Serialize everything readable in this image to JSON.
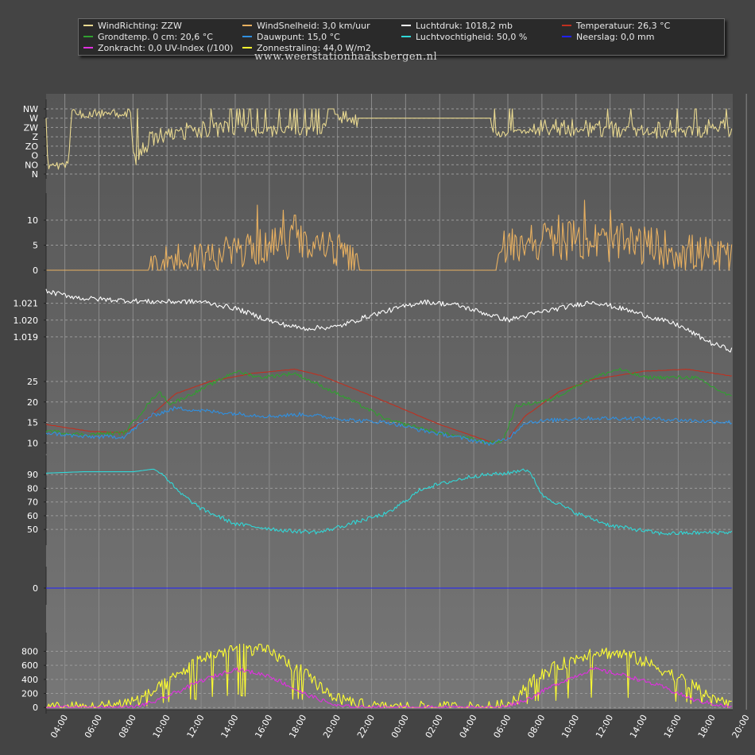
{
  "legend": [
    {
      "label": "WindRichting: ZZW",
      "color": "#e8d890"
    },
    {
      "label": "WindSnelheid: 3,0 km/uur",
      "color": "#e8b060"
    },
    {
      "label": "Luchtdruk: 1018,2 mb",
      "color": "#ffffff"
    },
    {
      "label": "Temperatuur: 26,3 °C",
      "color": "#c03020"
    },
    {
      "label": "Grondtemp. 0 cm: 20,6 °C",
      "color": "#30a030"
    },
    {
      "label": "Dauwpunt: 15,0 °C",
      "color": "#3090e0"
    },
    {
      "label": "Luchtvochtigheid: 50,0 %",
      "color": "#30d8d8"
    },
    {
      "label": "Neerslag: 0,0 mm",
      "color": "#2020ff"
    },
    {
      "label": "Zonkracht: 0,0 UV-Index (/100)",
      "color": "#e030e0"
    },
    {
      "label": "Zonnestraling: 44,0 W/m2",
      "color": "#ffff30"
    }
  ],
  "watermark": "www.weerstationhaaksbergen.nl",
  "chart_data": {
    "type": "line",
    "x_tick_labels": [
      "04:00",
      "06:00",
      "08:00",
      "10:00",
      "12:00",
      "14:00",
      "16:00",
      "18:00",
      "20:00",
      "22:00",
      "00:00",
      "02:00",
      "04:00",
      "06:00",
      "08:00",
      "10:00",
      "12:00",
      "14:00",
      "16:00",
      "18:00",
      "20:00"
    ],
    "x_range_hours": [
      2.9,
      43.2
    ],
    "panels": [
      {
        "id": "winddir",
        "series_name": "WindRichting",
        "color": "#e8d890",
        "tick_labels": [
          "NW",
          "W",
          "ZW",
          "Z",
          "ZO",
          "O",
          "NO",
          "N"
        ],
        "keyframes": [
          [
            2.9,
            1.0
          ],
          [
            3.0,
            6.0
          ],
          [
            4.2,
            6.0
          ],
          [
            4.4,
            0.5
          ],
          [
            5.0,
            0.5
          ],
          [
            7.9,
            0.5
          ],
          [
            8.0,
            5.5
          ],
          [
            8.4,
            5.2
          ],
          [
            9.0,
            3.0
          ],
          [
            13.0,
            2.0
          ],
          [
            17.0,
            2.5
          ],
          [
            19.0,
            2.2
          ],
          [
            20.0,
            0.6
          ],
          [
            21.0,
            1.5
          ],
          [
            21.2,
            1.0
          ],
          [
            29.0,
            1.0
          ],
          [
            29.1,
            2.8
          ],
          [
            33.0,
            2.0
          ],
          [
            38.0,
            2.2
          ],
          [
            43.2,
            2.0
          ]
        ],
        "noise": [
          [
            3.0,
            8.0,
            0.5,
            0.0
          ],
          [
            8.0,
            14.5,
            1.0,
            0.13
          ],
          [
            14.5,
            20.0,
            0.7,
            0.28
          ],
          [
            20.0,
            21.2,
            0.8,
            0.0
          ],
          [
            29.0,
            31.5,
            0.3,
            0.02
          ],
          [
            31.5,
            43.2,
            1.0,
            0.08
          ]
        ],
        "ylim": [
          0,
          7
        ]
      },
      {
        "id": "windspeed",
        "series_name": "WindSnelheid",
        "color": "#e8b060",
        "ticks": [
          0,
          5,
          10
        ],
        "keyframes": [
          [
            2.9,
            0
          ],
          [
            8.9,
            0
          ],
          [
            9.0,
            1.0
          ],
          [
            10.0,
            2.0
          ],
          [
            13.0,
            3.0
          ],
          [
            16.0,
            5.0
          ],
          [
            18.0,
            6.0
          ],
          [
            20.0,
            4.0
          ],
          [
            21.0,
            1.0
          ],
          [
            21.4,
            0
          ],
          [
            29.3,
            0
          ],
          [
            29.5,
            4.0
          ],
          [
            31.0,
            6.0
          ],
          [
            34.0,
            6.0
          ],
          [
            38.0,
            5.0
          ],
          [
            43.2,
            2.0
          ]
        ],
        "noise": [
          [
            9.0,
            21.3,
            3.5,
            0.08
          ],
          [
            29.5,
            43.2,
            4.0,
            0.18
          ]
        ],
        "spikes": [
          [
            15.3,
            13
          ],
          [
            16.8,
            12
          ],
          [
            17.5,
            11
          ],
          [
            34.5,
            14
          ],
          [
            36.0,
            12
          ],
          [
            33.0,
            11
          ]
        ],
        "ylim": [
          0,
          13.5
        ]
      },
      {
        "id": "pressure",
        "series_name": "Luchtdruk",
        "color": "#ffffff",
        "ticks": [
          1.019,
          1.02,
          1.021
        ],
        "tick_labels": [
          "1.019",
          "1.020",
          "1.021"
        ],
        "keyframes": [
          [
            2.9,
            1.0217
          ],
          [
            5.0,
            1.0213
          ],
          [
            9.0,
            1.0211
          ],
          [
            12.0,
            1.0211
          ],
          [
            14.0,
            1.0207
          ],
          [
            16.5,
            1.0198
          ],
          [
            18.0,
            1.0195
          ],
          [
            20.0,
            1.0196
          ],
          [
            22.0,
            1.0203
          ],
          [
            25.0,
            1.0211
          ],
          [
            27.0,
            1.0209
          ],
          [
            30.0,
            1.02
          ],
          [
            32.0,
            1.0205
          ],
          [
            35.0,
            1.0211
          ],
          [
            37.0,
            1.0206
          ],
          [
            40.0,
            1.0197
          ],
          [
            42.0,
            1.0186
          ],
          [
            43.2,
            1.0182
          ]
        ],
        "noise": [
          [
            2.9,
            43.2,
            0.00015,
            0.0
          ]
        ],
        "ylim": [
          1.018,
          1.0225
        ]
      },
      {
        "id": "temperature",
        "ticks": [
          10,
          15,
          20,
          25
        ],
        "ylim": [
          8.5,
          28.5
        ],
        "series": [
          {
            "name": "Temperatuur",
            "color": "#c03020",
            "keyframes": [
              [
                2.9,
                14.5
              ],
              [
                5.5,
                12.8
              ],
              [
                7.5,
                12.5
              ],
              [
                9.0,
                16.5
              ],
              [
                10.5,
                22.0
              ],
              [
                12.5,
                25.0
              ],
              [
                15.0,
                27.0
              ],
              [
                17.5,
                28.0
              ],
              [
                19.0,
                26.5
              ],
              [
                22.0,
                21.5
              ],
              [
                26.0,
                14.5
              ],
              [
                29.0,
                10.2
              ],
              [
                30.0,
                11.0
              ],
              [
                31.0,
                16.5
              ],
              [
                33.0,
                22.5
              ],
              [
                35.0,
                25.5
              ],
              [
                38.0,
                27.5
              ],
              [
                40.5,
                28.0
              ],
              [
                43.2,
                26.3
              ]
            ],
            "noise": 0.05
          },
          {
            "name": "Grondtemp. 0 cm",
            "color": "#30a030",
            "keyframes": [
              [
                2.9,
                13.0
              ],
              [
                5.0,
                12.0
              ],
              [
                7.5,
                12.5
              ],
              [
                8.7,
                18.5
              ],
              [
                9.5,
                22.5
              ],
              [
                10.2,
                19.5
              ],
              [
                12.0,
                23.0
              ],
              [
                14.0,
                27.5
              ],
              [
                15.5,
                26.0
              ],
              [
                17.5,
                27.0
              ],
              [
                19.0,
                24.0
              ],
              [
                21.0,
                20.0
              ],
              [
                23.0,
                15.5
              ],
              [
                26.0,
                12.5
              ],
              [
                29.0,
                10.0
              ],
              [
                29.7,
                10.5
              ],
              [
                30.5,
                19.0
              ],
              [
                32.5,
                20.5
              ],
              [
                35.0,
                26.0
              ],
              [
                36.5,
                28.0
              ],
              [
                38.0,
                26.0
              ],
              [
                41.0,
                26.0
              ],
              [
                43.2,
                21.0
              ]
            ],
            "noise": 0.45
          },
          {
            "name": "Dauwpunt",
            "color": "#3090e0",
            "keyframes": [
              [
                2.9,
                12.5
              ],
              [
                5.0,
                11.5
              ],
              [
                7.5,
                11.5
              ],
              [
                9.0,
                16.5
              ],
              [
                10.5,
                18.5
              ],
              [
                13.0,
                17.5
              ],
              [
                16.0,
                16.5
              ],
              [
                18.0,
                17.0
              ],
              [
                21.0,
                15.5
              ],
              [
                23.0,
                15.0
              ],
              [
                25.0,
                13.0
              ],
              [
                29.0,
                9.8
              ],
              [
                30.0,
                11.0
              ],
              [
                31.0,
                15.0
              ],
              [
                34.0,
                16.0
              ],
              [
                38.0,
                16.0
              ],
              [
                43.2,
                15.0
              ]
            ],
            "noise": 0.5
          }
        ]
      },
      {
        "id": "humidity",
        "series_name": "Luchtvochtigheid",
        "color": "#30d8d8",
        "ticks": [
          50,
          60,
          70,
          80,
          90
        ],
        "keyframes": [
          [
            2.9,
            91
          ],
          [
            5.0,
            92
          ],
          [
            8.0,
            92
          ],
          [
            9.2,
            94
          ],
          [
            9.8,
            90
          ],
          [
            10.6,
            78
          ],
          [
            12.0,
            65
          ],
          [
            14.0,
            54
          ],
          [
            17.0,
            49
          ],
          [
            19.0,
            48
          ],
          [
            21.0,
            55
          ],
          [
            23.0,
            62
          ],
          [
            25.0,
            80
          ],
          [
            28.0,
            89
          ],
          [
            30.0,
            91
          ],
          [
            31.0,
            94
          ],
          [
            31.5,
            88
          ],
          [
            32.0,
            75
          ],
          [
            34.0,
            62
          ],
          [
            36.0,
            53
          ],
          [
            39.0,
            47
          ],
          [
            43.2,
            48
          ]
        ],
        "noise": [
          [
            9.5,
            43.2,
            1.5,
            0.0
          ]
        ],
        "ylim": [
          42,
          97
        ]
      },
      {
        "id": "precip",
        "series_name": "Neerslag",
        "color": "#2020ff",
        "ticks": [
          0
        ],
        "keyframes": [
          [
            2.9,
            0
          ],
          [
            43.2,
            0
          ]
        ],
        "ylim": [
          -1,
          1
        ]
      },
      {
        "id": "solar",
        "ticks": [
          0,
          200,
          400,
          600,
          800
        ],
        "ylim": [
          -20,
          930
        ],
        "series": [
          {
            "name": "Zonnestraling",
            "color": "#ffff30",
            "keyframes": [
              [
                2.9,
                0
              ],
              [
                5.5,
                0
              ],
              [
                6.5,
                20
              ],
              [
                8.5,
                120
              ],
              [
                10.0,
                350
              ],
              [
                12.0,
                700
              ],
              [
                14.0,
                850
              ],
              [
                16.0,
                800
              ],
              [
                18.0,
                500
              ],
              [
                19.5,
                200
              ],
              [
                21.0,
                50
              ],
              [
                22.5,
                0
              ],
              [
                29.0,
                0
              ],
              [
                29.8,
                30
              ],
              [
                31.5,
                400
              ],
              [
                33.0,
                600
              ],
              [
                35.0,
                800
              ],
              [
                37.0,
                750
              ],
              [
                39.0,
                550
              ],
              [
                41.0,
                300
              ],
              [
                42.5,
                80
              ],
              [
                43.2,
                30
              ]
            ],
            "noise": 90,
            "dip_prob": 0.12
          },
          {
            "name": "Zonkracht",
            "color": "#e030e0",
            "keyframes": [
              [
                2.9,
                0
              ],
              [
                8.0,
                0
              ],
              [
                9.5,
                100
              ],
              [
                12.0,
                380
              ],
              [
                14.0,
                550
              ],
              [
                16.0,
                450
              ],
              [
                18.0,
                200
              ],
              [
                20.0,
                20
              ],
              [
                21.5,
                0
              ],
              [
                29.5,
                0
              ],
              [
                31.0,
                100
              ],
              [
                33.0,
                350
              ],
              [
                35.0,
                550
              ],
              [
                37.0,
                450
              ],
              [
                39.0,
                300
              ],
              [
                41.0,
                100
              ],
              [
                43.2,
                0
              ]
            ],
            "noise": 30,
            "dip_prob": 0.0
          }
        ]
      }
    ]
  }
}
